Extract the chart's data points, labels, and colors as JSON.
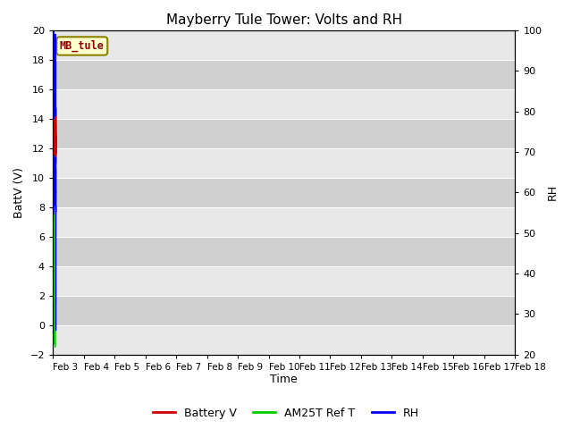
{
  "title": "Mayberry Tule Tower: Volts and RH",
  "xlabel": "Time",
  "ylabel_left": "BattV (V)",
  "ylabel_right": "RH",
  "ylim_left": [
    -2,
    20
  ],
  "ylim_right": [
    20,
    100
  ],
  "yticks_left": [
    -2,
    0,
    2,
    4,
    6,
    8,
    10,
    12,
    14,
    16,
    18,
    20
  ],
  "yticks_right": [
    20,
    30,
    40,
    50,
    60,
    70,
    80,
    90,
    100
  ],
  "xtick_labels": [
    "Feb 3",
    "Feb 4",
    "Feb 5",
    "Feb 6",
    "Feb 7",
    "Feb 8",
    "Feb 9",
    "Feb 10",
    "Feb 11",
    "Feb 12",
    "Feb 13",
    "Feb 14",
    "Feb 15",
    "Feb 16",
    "Feb 17",
    "Feb 18"
  ],
  "station_label": "MB_tule",
  "station_label_fgcolor": "#8B0000",
  "station_label_bg": "#FFFFCC",
  "station_label_edge": "#8B8000",
  "color_battery": "#CC0000",
  "color_am25t": "#00CC00",
  "color_rh": "#0000EE",
  "legend_labels": [
    "Battery V",
    "AM25T Ref T",
    "RH"
  ],
  "plot_bg_light": "#E8E8E8",
  "plot_bg_dark": "#D0D0D0",
  "grid_color": "#FFFFFF",
  "title_fontsize": 11,
  "axis_fontsize": 9,
  "tick_fontsize": 8,
  "legend_fontsize": 9
}
